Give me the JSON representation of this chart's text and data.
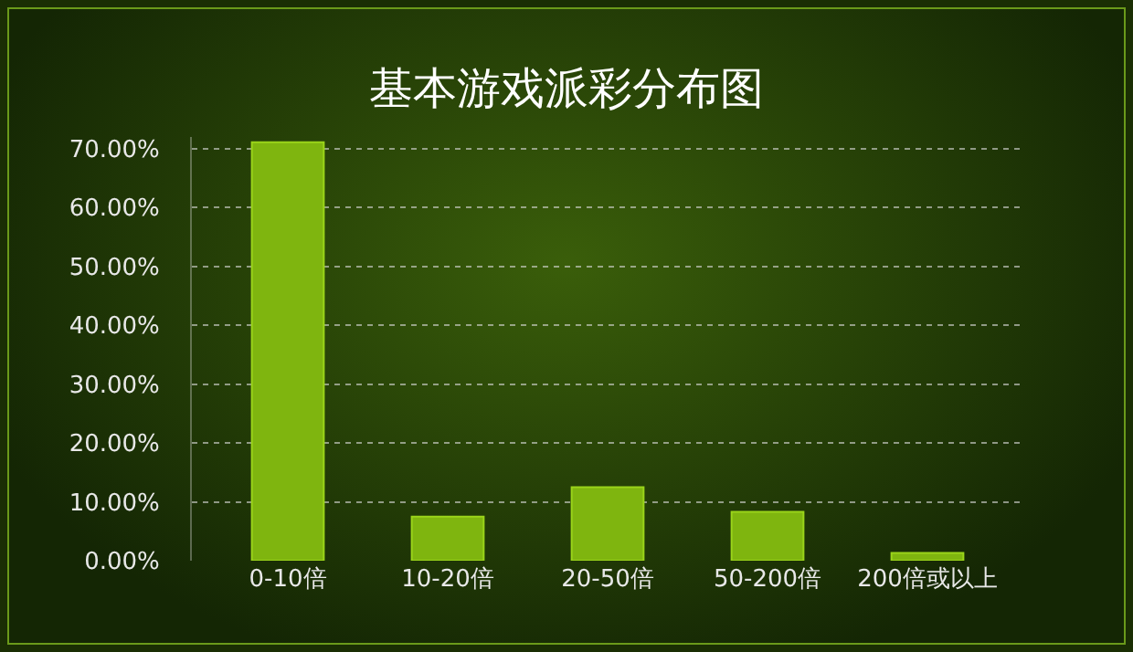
{
  "chart_data": {
    "type": "bar",
    "title": "基本游戏派彩分布图",
    "categories": [
      "0-10倍",
      "10-20倍",
      "20-50倍",
      "50-200倍",
      "200倍或以上"
    ],
    "values": [
      71.1,
      7.5,
      12.5,
      8.3,
      1.3
    ],
    "color": "#7fb50f",
    "ylim": [
      0,
      72
    ],
    "yticks": [
      {
        "value": 0,
        "label": "0.00%"
      },
      {
        "value": 10,
        "label": "10.00%"
      },
      {
        "value": 20,
        "label": "20.00%"
      },
      {
        "value": 30,
        "label": "30.00%"
      },
      {
        "value": 40,
        "label": "40.00%"
      },
      {
        "value": 50,
        "label": "50.00%"
      },
      {
        "value": 60,
        "label": "60.00%"
      },
      {
        "value": 70,
        "label": "70.00%"
      }
    ],
    "grid": "y"
  }
}
